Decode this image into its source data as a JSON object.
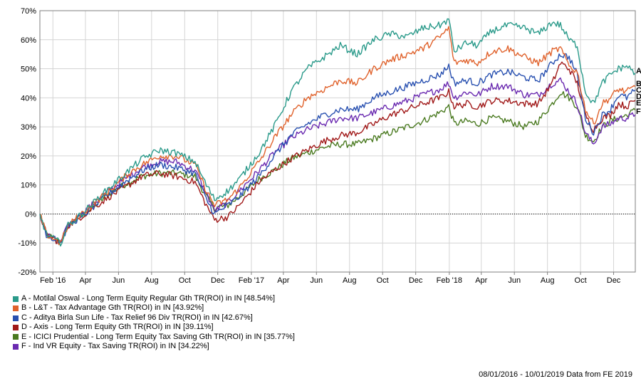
{
  "chart_data": {
    "type": "line",
    "title": "",
    "xlabel": "",
    "ylabel": "",
    "ylim": [
      -20,
      70
    ],
    "y_ticks": [
      -20,
      -10,
      0,
      10,
      20,
      30,
      40,
      50,
      60,
      70
    ],
    "y_tick_labels": [
      "-20%",
      "-10%",
      "0%",
      "10%",
      "20%",
      "30%",
      "40%",
      "50%",
      "60%",
      "70%"
    ],
    "x_range": [
      "2016-01-08",
      "2019-01-10"
    ],
    "x_ticks": [
      {
        "date": "2016-02-01",
        "label": "Feb '16"
      },
      {
        "date": "2016-04-01",
        "label": "Apr"
      },
      {
        "date": "2016-06-01",
        "label": "Jun"
      },
      {
        "date": "2016-08-01",
        "label": "Aug"
      },
      {
        "date": "2016-10-01",
        "label": "Oct"
      },
      {
        "date": "2016-12-01",
        "label": "Dec"
      },
      {
        "date": "2017-02-01",
        "label": "Feb '17"
      },
      {
        "date": "2017-04-01",
        "label": "Apr"
      },
      {
        "date": "2017-06-01",
        "label": "Jun"
      },
      {
        "date": "2017-08-01",
        "label": "Aug"
      },
      {
        "date": "2017-10-01",
        "label": "Oct"
      },
      {
        "date": "2017-12-01",
        "label": "Dec"
      },
      {
        "date": "2018-02-01",
        "label": "Feb '18"
      },
      {
        "date": "2018-04-01",
        "label": "Apr"
      },
      {
        "date": "2018-06-01",
        "label": "Jun"
      },
      {
        "date": "2018-08-01",
        "label": "Aug"
      },
      {
        "date": "2018-10-01",
        "label": "Oct"
      },
      {
        "date": "2018-12-01",
        "label": "Dec"
      }
    ],
    "grid": true,
    "zero_line": "dotted",
    "legend_position": "bottom-left",
    "x": [
      "2016-01-08",
      "2016-01-20",
      "2016-02-15",
      "2016-02-29",
      "2016-03-31",
      "2016-05-15",
      "2016-06-20",
      "2016-07-15",
      "2016-08-15",
      "2016-09-15",
      "2016-10-20",
      "2016-11-10",
      "2016-11-25",
      "2016-12-20",
      "2017-01-10",
      "2017-02-15",
      "2017-03-15",
      "2017-04-15",
      "2017-05-15",
      "2017-06-15",
      "2017-07-15",
      "2017-08-15",
      "2017-09-15",
      "2017-10-15",
      "2017-11-15",
      "2017-12-15",
      "2018-01-15",
      "2018-01-31",
      "2018-02-10",
      "2018-03-05",
      "2018-03-25",
      "2018-04-20",
      "2018-05-20",
      "2018-06-20",
      "2018-07-15",
      "2018-08-10",
      "2018-08-25",
      "2018-09-10",
      "2018-09-25",
      "2018-10-10",
      "2018-10-25",
      "2018-11-10",
      "2018-11-25",
      "2018-12-10",
      "2018-12-25",
      "2019-01-10"
    ],
    "series": [
      {
        "name": "A",
        "color": "#2a9a8a",
        "values": [
          0,
          -7,
          -10,
          -4,
          1,
          9,
          15,
          19,
          22,
          21,
          18,
          10,
          5,
          8,
          12,
          21,
          30,
          42,
          50,
          54,
          58,
          55,
          60,
          62,
          61,
          64,
          65,
          67,
          56,
          59,
          58,
          63,
          65,
          64,
          62,
          66,
          65,
          60,
          58,
          42,
          38,
          45,
          48,
          50,
          51,
          48.54
        ]
      },
      {
        "name": "B",
        "color": "#e0622c",
        "values": [
          0,
          -7,
          -10,
          -4,
          1,
          8,
          14,
          17,
          20,
          20,
          17,
          8,
          3,
          5,
          9,
          18,
          26,
          34,
          40,
          43,
          46,
          45,
          50,
          53,
          55,
          57,
          61,
          64,
          52,
          53,
          52,
          56,
          57,
          54,
          52,
          56,
          57,
          51,
          49,
          36,
          31,
          38,
          40,
          43,
          42,
          43.92
        ]
      },
      {
        "name": "C",
        "color": "#2850b0",
        "values": [
          0,
          -7,
          -10,
          -4,
          0,
          7,
          12,
          15,
          17,
          16,
          14,
          5,
          0,
          3,
          6,
          13,
          20,
          27,
          31,
          34,
          36,
          36,
          40,
          42,
          44,
          46,
          48,
          51,
          45,
          46,
          45,
          48,
          49,
          47,
          46,
          52,
          55,
          54,
          48,
          33,
          28,
          34,
          36,
          41,
          40,
          42.67
        ]
      },
      {
        "name": "D",
        "color": "#a01818",
        "values": [
          0,
          -7,
          -10,
          -4,
          0,
          6,
          10,
          13,
          14,
          13,
          11,
          3,
          -2,
          -1,
          3,
          11,
          15,
          19,
          22,
          25,
          27,
          28,
          31,
          34,
          36,
          38,
          40,
          42,
          37,
          38,
          37,
          39,
          39,
          38,
          38,
          45,
          52,
          50,
          45,
          34,
          29,
          33,
          34,
          38,
          37,
          39.11
        ]
      },
      {
        "name": "E",
        "color": "#4a7a20",
        "values": [
          0,
          -7,
          -10,
          -4,
          0,
          7,
          11,
          13,
          14,
          14,
          13,
          6,
          2,
          3,
          6,
          12,
          15,
          19,
          21,
          23,
          24,
          24,
          26,
          28,
          30,
          32,
          35,
          37,
          31,
          32,
          31,
          33,
          32,
          30,
          32,
          38,
          42,
          40,
          37,
          27,
          25,
          30,
          32,
          33,
          34,
          35.77
        ]
      },
      {
        "name": "F",
        "color": "#6a2ab0",
        "values": [
          0,
          -7,
          -10,
          -4,
          1,
          8,
          13,
          16,
          18,
          18,
          15,
          7,
          1,
          4,
          8,
          15,
          21,
          26,
          29,
          31,
          33,
          33,
          35,
          37,
          39,
          41,
          43,
          45,
          40,
          42,
          41,
          44,
          44,
          41,
          41,
          45,
          46,
          42,
          38,
          28,
          24,
          30,
          31,
          33,
          33,
          34.22
        ]
      }
    ]
  },
  "legend": [
    {
      "color": "#2a9a8a",
      "label": "A - Motilal Oswal - Long Term Equity Regular Gth TR(ROI) in IN [48.54%]"
    },
    {
      "color": "#e0622c",
      "label": "B - L&T - Tax Advantage Gth TR(ROI) in IN [43.92%]"
    },
    {
      "color": "#2850b0",
      "label": "C - Aditya Birla Sun Life - Tax Relief 96 Div TR(ROI) in IN [42.67%]"
    },
    {
      "color": "#a01818",
      "label": "D - Axis - Long Term Equity Gth TR(ROI) in IN [39.11%]"
    },
    {
      "color": "#4a7a20",
      "label": "E - ICICI Prudential - Long Term Equity Tax Saving Gth TR(ROI) in IN [35.77%]"
    },
    {
      "color": "#6a2ab0",
      "label": "F - Ind VR Equity - Tax Saving TR(ROI) in IN [34.22%]"
    }
  ],
  "footer": "08/01/2016 - 10/01/2019 Data from FE 2019"
}
